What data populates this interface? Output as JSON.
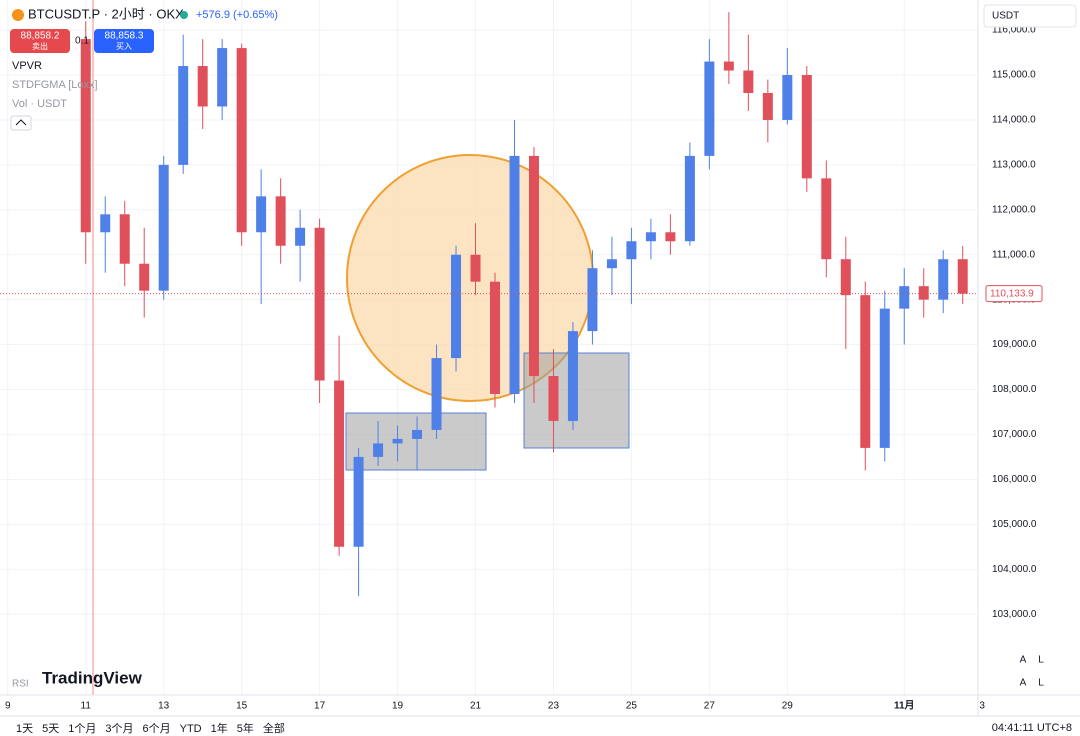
{
  "header": {
    "symbol": "BTCUSDT.P · 2小时 · OKX",
    "change": "+576.9 (+0.65%)",
    "sell_price": "88,858.2",
    "sell": "卖出",
    "qty": "0.1",
    "buy_price": "88,858.3",
    "buy": "买入",
    "indicators": [
      "VPVR",
      "STDFGMA [Loxx]",
      "Vol · USDT"
    ],
    "currency": "USDT",
    "rsi": "RSI",
    "logo": "TradingView"
  },
  "toolbar": {
    "ranges": [
      "1天",
      "5天",
      "1个月",
      "3个月",
      "6个月",
      "YTD",
      "1年",
      "5年",
      "全部"
    ],
    "clock": "04:41:11 UTC+8",
    "buttons": [
      "A",
      "L",
      "A",
      "L"
    ]
  },
  "chart_data": {
    "type": "candlestick",
    "series": [
      {
        "up_color": "#4f80e8",
        "down_color": "#e0505a",
        "x": [
          11.0,
          11.5,
          12.0,
          12.5,
          13.0,
          13.5,
          14.0,
          14.5,
          15.0,
          15.5,
          16.0,
          16.5,
          17.0,
          17.5,
          18.0,
          18.5,
          19.0,
          19.5,
          20.0,
          20.5,
          21.0,
          21.5,
          22.0,
          22.5,
          23.0,
          23.5,
          24.0,
          24.5,
          25.0,
          25.5,
          26.0,
          26.5,
          27.0,
          27.5,
          28.0,
          28.5,
          29.0,
          29.5,
          30.0,
          30.5,
          31.0,
          31.5,
          32.0,
          32.5,
          33.0,
          33.5
        ],
        "open": [
          115800,
          111500,
          111900,
          110800,
          110200,
          113000,
          115200,
          114300,
          115600,
          111500,
          112300,
          111200,
          111600,
          108200,
          104500,
          106500,
          106800,
          106900,
          107100,
          108700,
          111000,
          110400,
          107900,
          113200,
          108300,
          107300,
          109300,
          110700,
          110900,
          111300,
          111500,
          111300,
          113200,
          115300,
          115100,
          114600,
          114000,
          115000,
          112700,
          110900,
          110100,
          106700,
          109800,
          110300,
          110000,
          110900
        ],
        "high": [
          116200,
          112300,
          112200,
          111600,
          113200,
          115900,
          115800,
          115800,
          115700,
          112900,
          112700,
          112000,
          111800,
          109200,
          106700,
          107300,
          107200,
          107400,
          109000,
          111200,
          111700,
          110600,
          114000,
          113400,
          108900,
          109500,
          111100,
          111400,
          111600,
          111800,
          111900,
          113500,
          115800,
          116400,
          115900,
          114900,
          115600,
          115200,
          113100,
          111400,
          110400,
          110200,
          110700,
          110700,
          111100,
          111200
        ],
        "low": [
          110800,
          110600,
          110300,
          109600,
          110000,
          112800,
          113800,
          114000,
          111200,
          109900,
          110800,
          110400,
          107700,
          104300,
          103400,
          106300,
          106400,
          106200,
          106900,
          108400,
          110100,
          107600,
          107700,
          107700,
          106600,
          107100,
          109000,
          110100,
          109900,
          110900,
          111000,
          111200,
          112900,
          114800,
          114200,
          113500,
          113900,
          112400,
          110500,
          108900,
          106200,
          106400,
          109000,
          109600,
          109700,
          109900
        ],
        "close": [
          111500,
          111900,
          110800,
          110200,
          113000,
          115200,
          114300,
          115600,
          111500,
          112300,
          111200,
          111600,
          108200,
          104500,
          106500,
          106800,
          106900,
          107100,
          108700,
          111000,
          110400,
          107900,
          113200,
          108300,
          107300,
          109300,
          110700,
          110900,
          111300,
          111500,
          111300,
          113200,
          115300,
          115100,
          114600,
          114000,
          115000,
          112700,
          110900,
          110100,
          106700,
          109800,
          110300,
          110000,
          110900,
          110133.9
        ]
      }
    ],
    "last_price": {
      "value": 110133.9,
      "label": "110,133.9"
    },
    "xlim": [
      8.8,
      34.2
    ],
    "ylim": [
      101200,
      116670
    ],
    "xticks": [
      9,
      11,
      13,
      15,
      17,
      19,
      21,
      23,
      25,
      27,
      29,
      {
        "value": 32,
        "label": "11月"
      },
      {
        "value": 34,
        "label": "3"
      }
    ],
    "yticks": [
      {
        "value": 103000,
        "label": "103,000.0"
      },
      {
        "value": 104000,
        "label": "104,000.0"
      },
      {
        "value": 105000,
        "label": "105,000.0"
      },
      {
        "value": 106000,
        "label": "106,000.0"
      },
      {
        "value": 107000,
        "label": "107,000.0"
      },
      {
        "value": 108000,
        "label": "108,000.0"
      },
      {
        "value": 109000,
        "label": "109,000.0"
      },
      {
        "value": 110000,
        "label": "110,000.0"
      },
      {
        "value": 111000,
        "label": "111,000.0"
      },
      {
        "value": 112000,
        "label": "112,000.0"
      },
      {
        "value": 113000,
        "label": "113,000.0"
      },
      {
        "value": 114000,
        "label": "114,000.0"
      },
      {
        "value": 115000,
        "label": "115,000.0"
      },
      {
        "value": 116000,
        "label": "116,000.0"
      }
    ],
    "grid": true
  }
}
